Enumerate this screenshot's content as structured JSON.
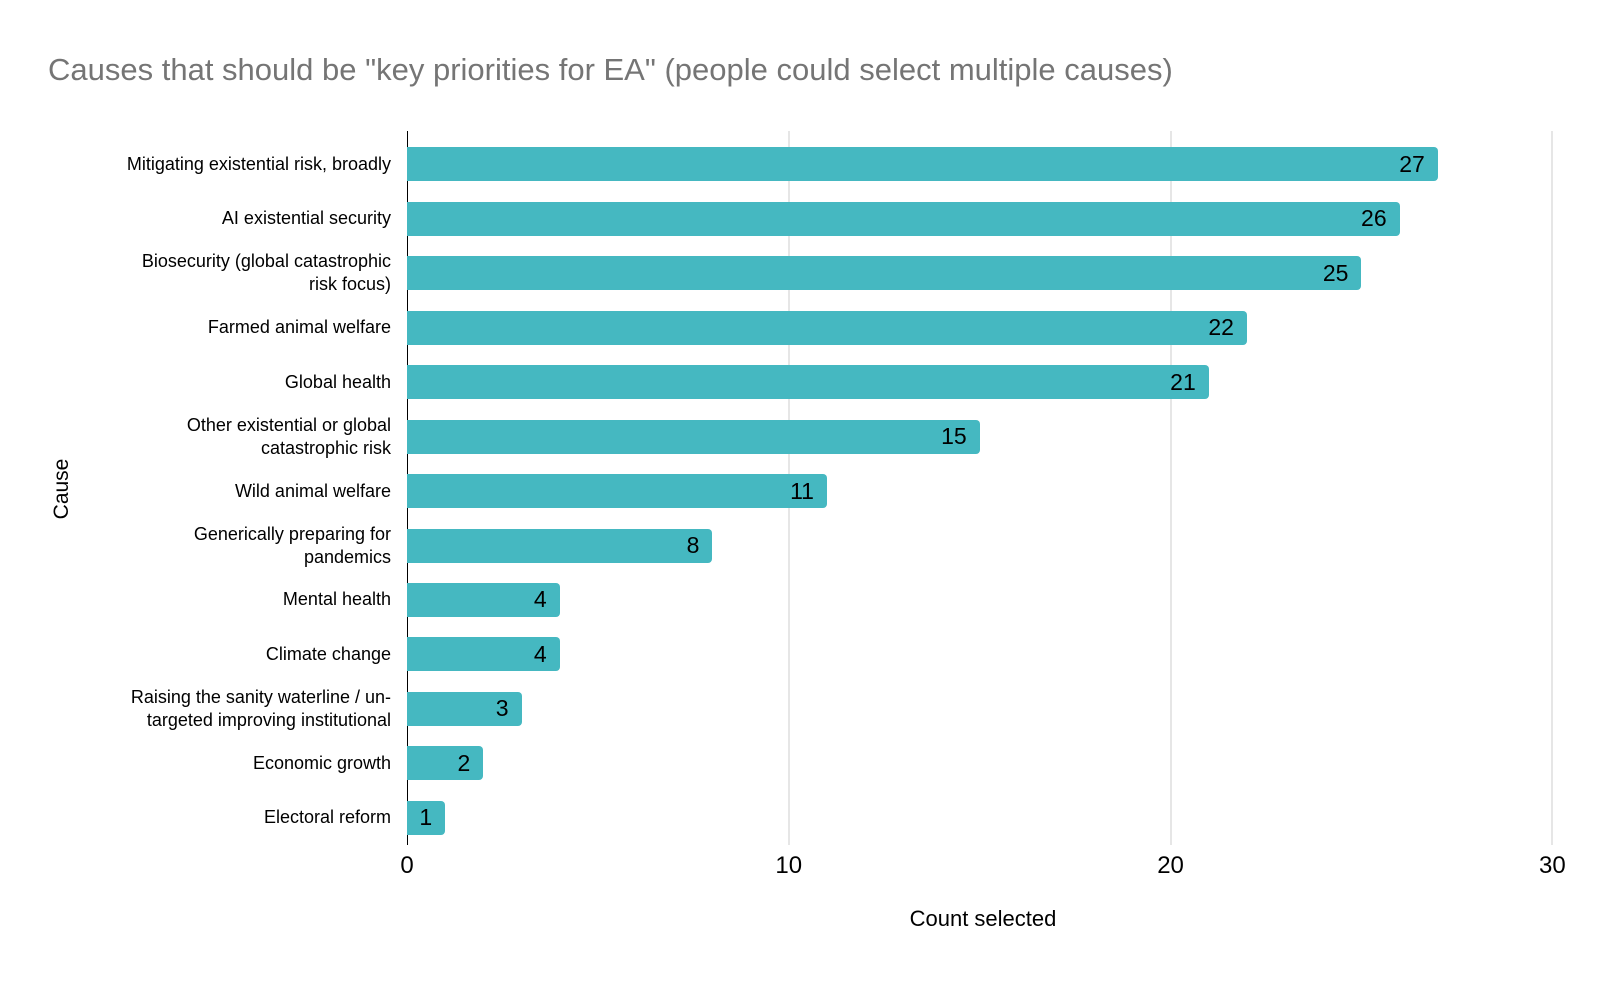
{
  "page": {
    "background_color": "#ffffff"
  },
  "chart_data": {
    "type": "bar",
    "orientation": "horizontal",
    "title": "Causes that should be \"key priorities for EA\" (people could select multiple causes)",
    "xlabel": "Count selected",
    "ylabel": "Cause",
    "xlim": [
      0,
      30.2
    ],
    "xticks": [
      0,
      10,
      20,
      30
    ],
    "grid": true,
    "legend": false,
    "bar_color": "#45b8c1",
    "gridline_color": "#cccccc",
    "axis_line_color": "#000000",
    "title_color": "#757575",
    "text_color": "#000000",
    "categories": [
      "Mitigating existential risk, broadly",
      "AI existential security",
      "Biosecurity (global catastrophic risk focus)",
      "Farmed animal welfare",
      "Global health",
      "Other existential or global catastrophic risk",
      "Wild animal welfare",
      "Generically preparing for pandemics",
      "Mental health",
      "Climate change",
      "Raising the sanity waterline / un-targeted improving institutional",
      "Economic growth",
      "Electoral reform"
    ],
    "values": [
      27,
      26,
      25,
      22,
      21,
      15,
      11,
      8,
      4,
      4,
      3,
      2,
      1
    ],
    "label_lines": [
      [
        "Mitigating existential risk, broadly"
      ],
      [
        "AI existential security"
      ],
      [
        "Biosecurity (global catastrophic",
        "risk focus)"
      ],
      [
        "Farmed animal welfare"
      ],
      [
        "Global health"
      ],
      [
        "Other existential or global",
        "catastrophic risk"
      ],
      [
        "Wild animal welfare"
      ],
      [
        "Generically preparing for",
        "pandemics"
      ],
      [
        "Mental health"
      ],
      [
        "Climate change"
      ],
      [
        "Raising the sanity waterline / un-",
        "targeted improving institutional"
      ],
      [
        "Economic growth"
      ],
      [
        "Electoral reform"
      ]
    ]
  }
}
